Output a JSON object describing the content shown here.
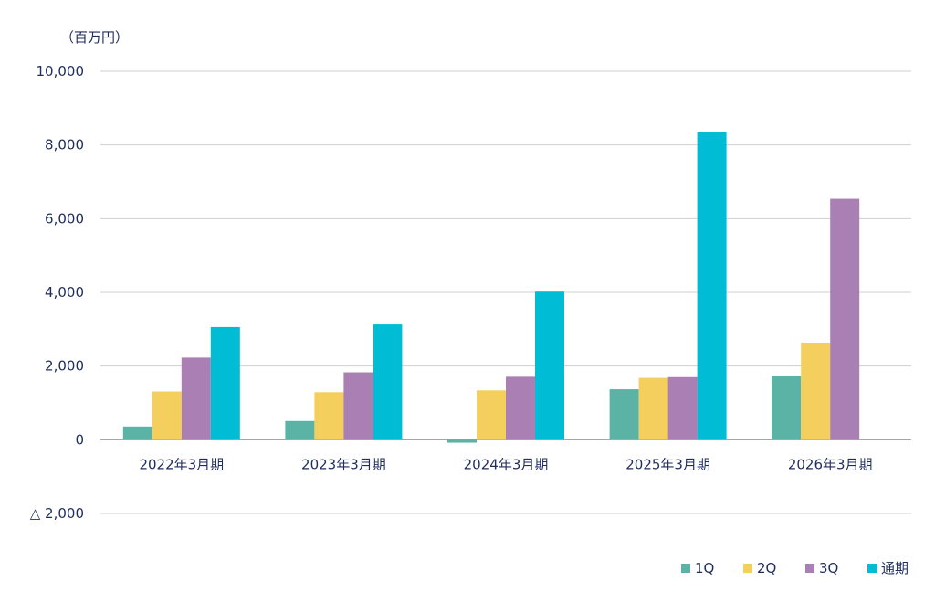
{
  "chart_data": {
    "type": "bar",
    "unit_label": "（百万円）",
    "categories": [
      "2022年3月期",
      "2023年3月期",
      "2024年3月期",
      "2025年3月期",
      "2026年3月期"
    ],
    "series": [
      {
        "name": "1Q",
        "color": "#5bb3a5",
        "values": [
          360,
          510,
          -80,
          1370,
          1720
        ]
      },
      {
        "name": "2Q",
        "color": "#f4cf5e",
        "values": [
          1310,
          1290,
          1340,
          1680,
          2630
        ]
      },
      {
        "name": "3Q",
        "color": "#a97fb4",
        "values": [
          2230,
          1830,
          1710,
          1700,
          6540
        ]
      },
      {
        "name": "通期",
        "color": "#00bcd4",
        "values": [
          3060,
          3130,
          4020,
          8350,
          null
        ]
      }
    ],
    "ylim": [
      -2000,
      10000
    ],
    "yticks": [
      {
        "value": 10000,
        "label": "10,000"
      },
      {
        "value": 8000,
        "label": "8,000"
      },
      {
        "value": 6000,
        "label": "6,000"
      },
      {
        "value": 4000,
        "label": "4,000"
      },
      {
        "value": 2000,
        "label": "2,000"
      },
      {
        "value": 0,
        "label": "0"
      },
      {
        "value": -2000,
        "label": "△ 2,000"
      }
    ],
    "grid": true,
    "legend_position": "bottom-right"
  }
}
